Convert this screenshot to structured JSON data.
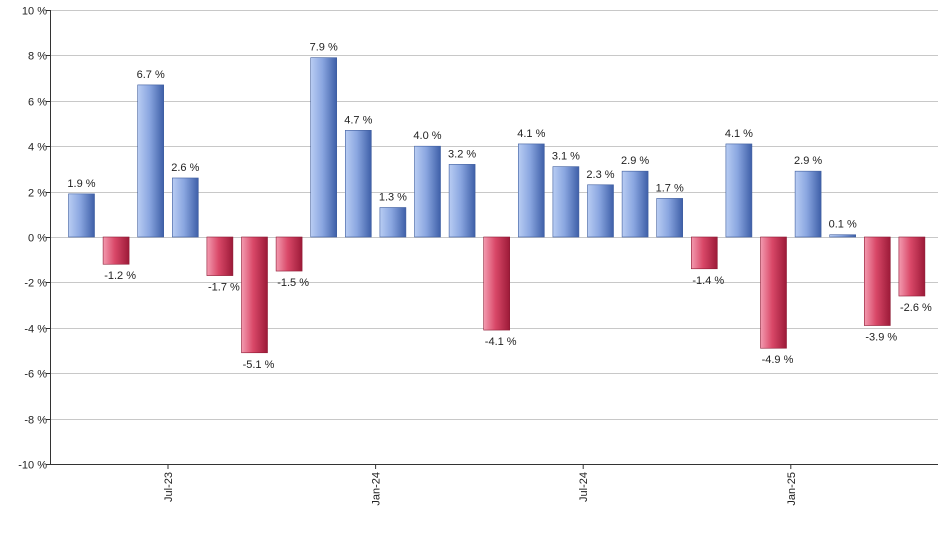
{
  "chart_data": {
    "type": "bar",
    "title": "",
    "xlabel": "",
    "ylabel": "",
    "ylim": [
      -10,
      10
    ],
    "yticks": [
      10,
      8,
      6,
      4,
      2,
      0,
      -2,
      -4,
      -6,
      -8,
      -10
    ],
    "ytick_labels": [
      "10 %",
      "8 %",
      "6 %",
      "4 %",
      "2 %",
      "0 %",
      "-2 %",
      "-4 %",
      "-6 %",
      "-8 %",
      "-10 %"
    ],
    "grid": true,
    "x_tick_labels": [
      {
        "label": "Jul-23",
        "after_index": 2
      },
      {
        "label": "Jan-24",
        "after_index": 8
      },
      {
        "label": "Jul-24",
        "after_index": 14
      },
      {
        "label": "Jan-25",
        "after_index": 20
      }
    ],
    "values": [
      1.9,
      -1.2,
      6.7,
      2.6,
      -1.7,
      -5.1,
      -1.5,
      7.9,
      4.7,
      1.3,
      4.0,
      3.2,
      -4.1,
      4.1,
      3.1,
      2.3,
      2.9,
      1.7,
      -1.4,
      4.1,
      -4.9,
      2.9,
      0.1,
      -3.9,
      -2.6
    ],
    "data_labels": [
      "1.9 %",
      "-1.2 %",
      "6.7 %",
      "2.6 %",
      "-1.7 %",
      "-5.1 %",
      "-1.5 %",
      "7.9 %",
      "4.7 %",
      "1.3 %",
      "4.0 %",
      "3.2 %",
      "-4.1 %",
      "4.1 %",
      "3.1 %",
      "2.3 %",
      "2.9 %",
      "1.7 %",
      "-1.4 %",
      "4.1 %",
      "-4.9 %",
      "2.9 %",
      "0.1 %",
      "-3.9 %",
      "-2.6 %"
    ],
    "colors": {
      "positive_light": "#b4c8f0",
      "positive_dark": "#4a6db8",
      "negative_light": "#f08aa0",
      "negative_dark": "#a8203e",
      "grid": "#c8c8c8",
      "axis": "#333333"
    }
  }
}
